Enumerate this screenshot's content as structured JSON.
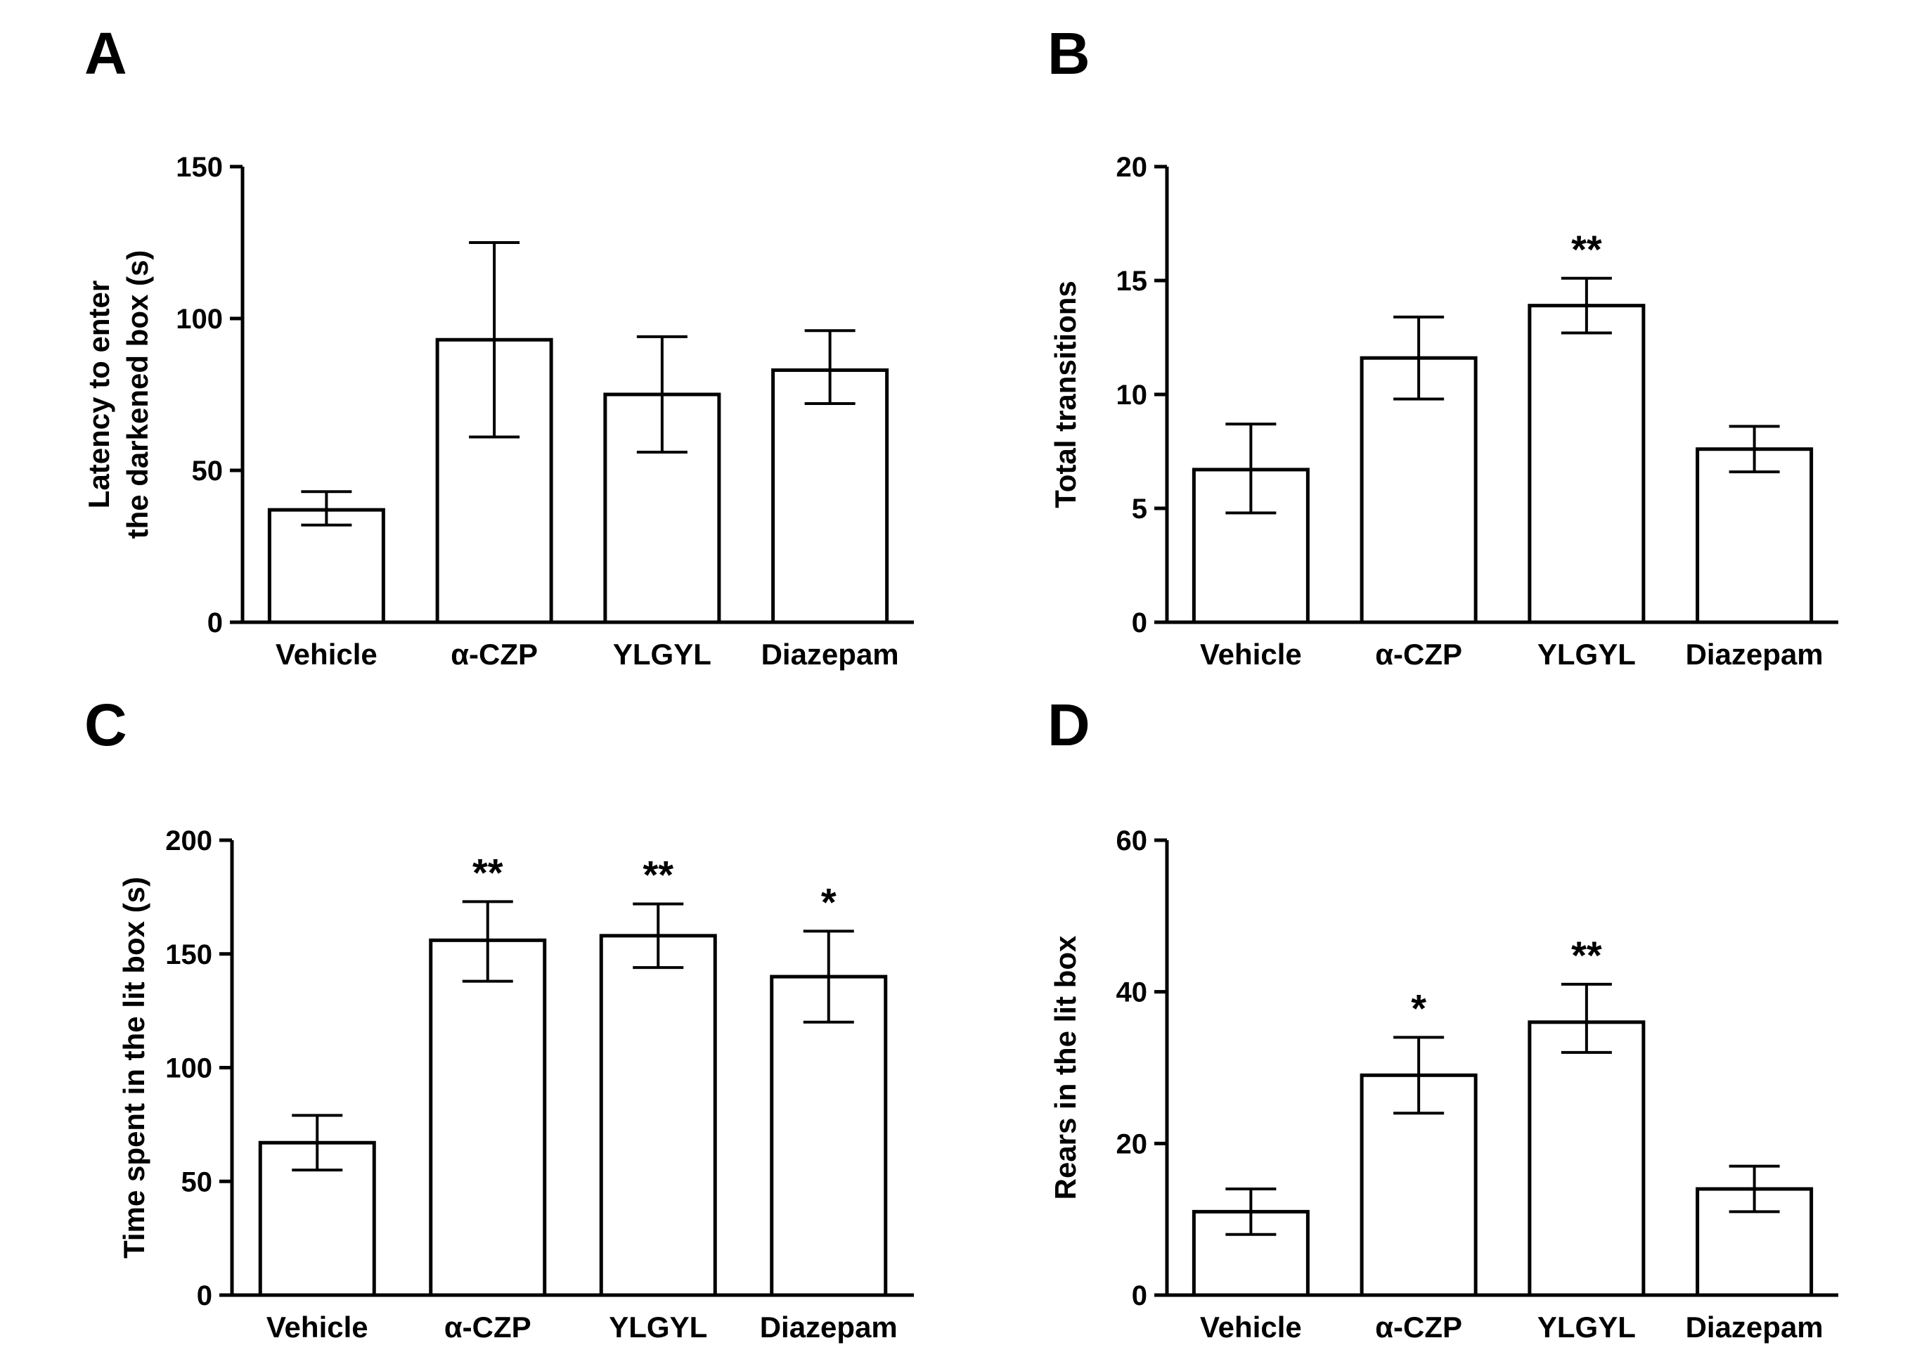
{
  "chart_data": [
    {
      "panel": "A",
      "type": "bar",
      "categories": [
        "Vehicle",
        "α-CZP",
        "YLGYL",
        "Diazepam"
      ],
      "values": [
        37,
        93,
        75,
        83
      ],
      "error_low": [
        32,
        61,
        56,
        72
      ],
      "error_high": [
        43,
        125,
        94,
        96
      ],
      "significance": [
        "",
        "",
        "",
        ""
      ],
      "ylabel": [
        "Latency to enter",
        "the darkened box (s)"
      ],
      "ylim": [
        0,
        150
      ],
      "yticks": [
        0,
        50,
        100,
        150
      ]
    },
    {
      "panel": "B",
      "type": "bar",
      "categories": [
        "Vehicle",
        "α-CZP",
        "YLGYL",
        "Diazepam"
      ],
      "values": [
        6.7,
        11.6,
        13.9,
        7.6
      ],
      "error_low": [
        4.8,
        9.8,
        12.7,
        6.6
      ],
      "error_high": [
        8.7,
        13.4,
        15.1,
        8.6
      ],
      "significance": [
        "",
        "",
        "**",
        ""
      ],
      "ylabel": [
        "Total transitions"
      ],
      "ylim": [
        0,
        20
      ],
      "yticks": [
        0,
        5,
        10,
        15,
        20
      ]
    },
    {
      "panel": "C",
      "type": "bar",
      "categories": [
        "Vehicle",
        "α-CZP",
        "YLGYL",
        "Diazepam"
      ],
      "values": [
        67,
        156,
        158,
        140
      ],
      "error_low": [
        55,
        138,
        144,
        120
      ],
      "error_high": [
        79,
        173,
        172,
        160
      ],
      "significance": [
        "",
        "**",
        "**",
        "*"
      ],
      "ylabel": [
        "Time spent in the lit box (s)"
      ],
      "ylim": [
        0,
        200
      ],
      "yticks": [
        0,
        50,
        100,
        150,
        200
      ]
    },
    {
      "panel": "D",
      "type": "bar",
      "categories": [
        "Vehicle",
        "α-CZP",
        "YLGYL",
        "Diazepam"
      ],
      "values": [
        11,
        29,
        36,
        14
      ],
      "error_low": [
        8,
        24,
        32,
        11
      ],
      "error_high": [
        14,
        34,
        41,
        17
      ],
      "significance": [
        "",
        "*",
        "**",
        ""
      ],
      "ylabel": [
        "Rears in the lit box"
      ],
      "ylim": [
        0,
        60
      ],
      "yticks": [
        0,
        20,
        40,
        60
      ]
    }
  ]
}
